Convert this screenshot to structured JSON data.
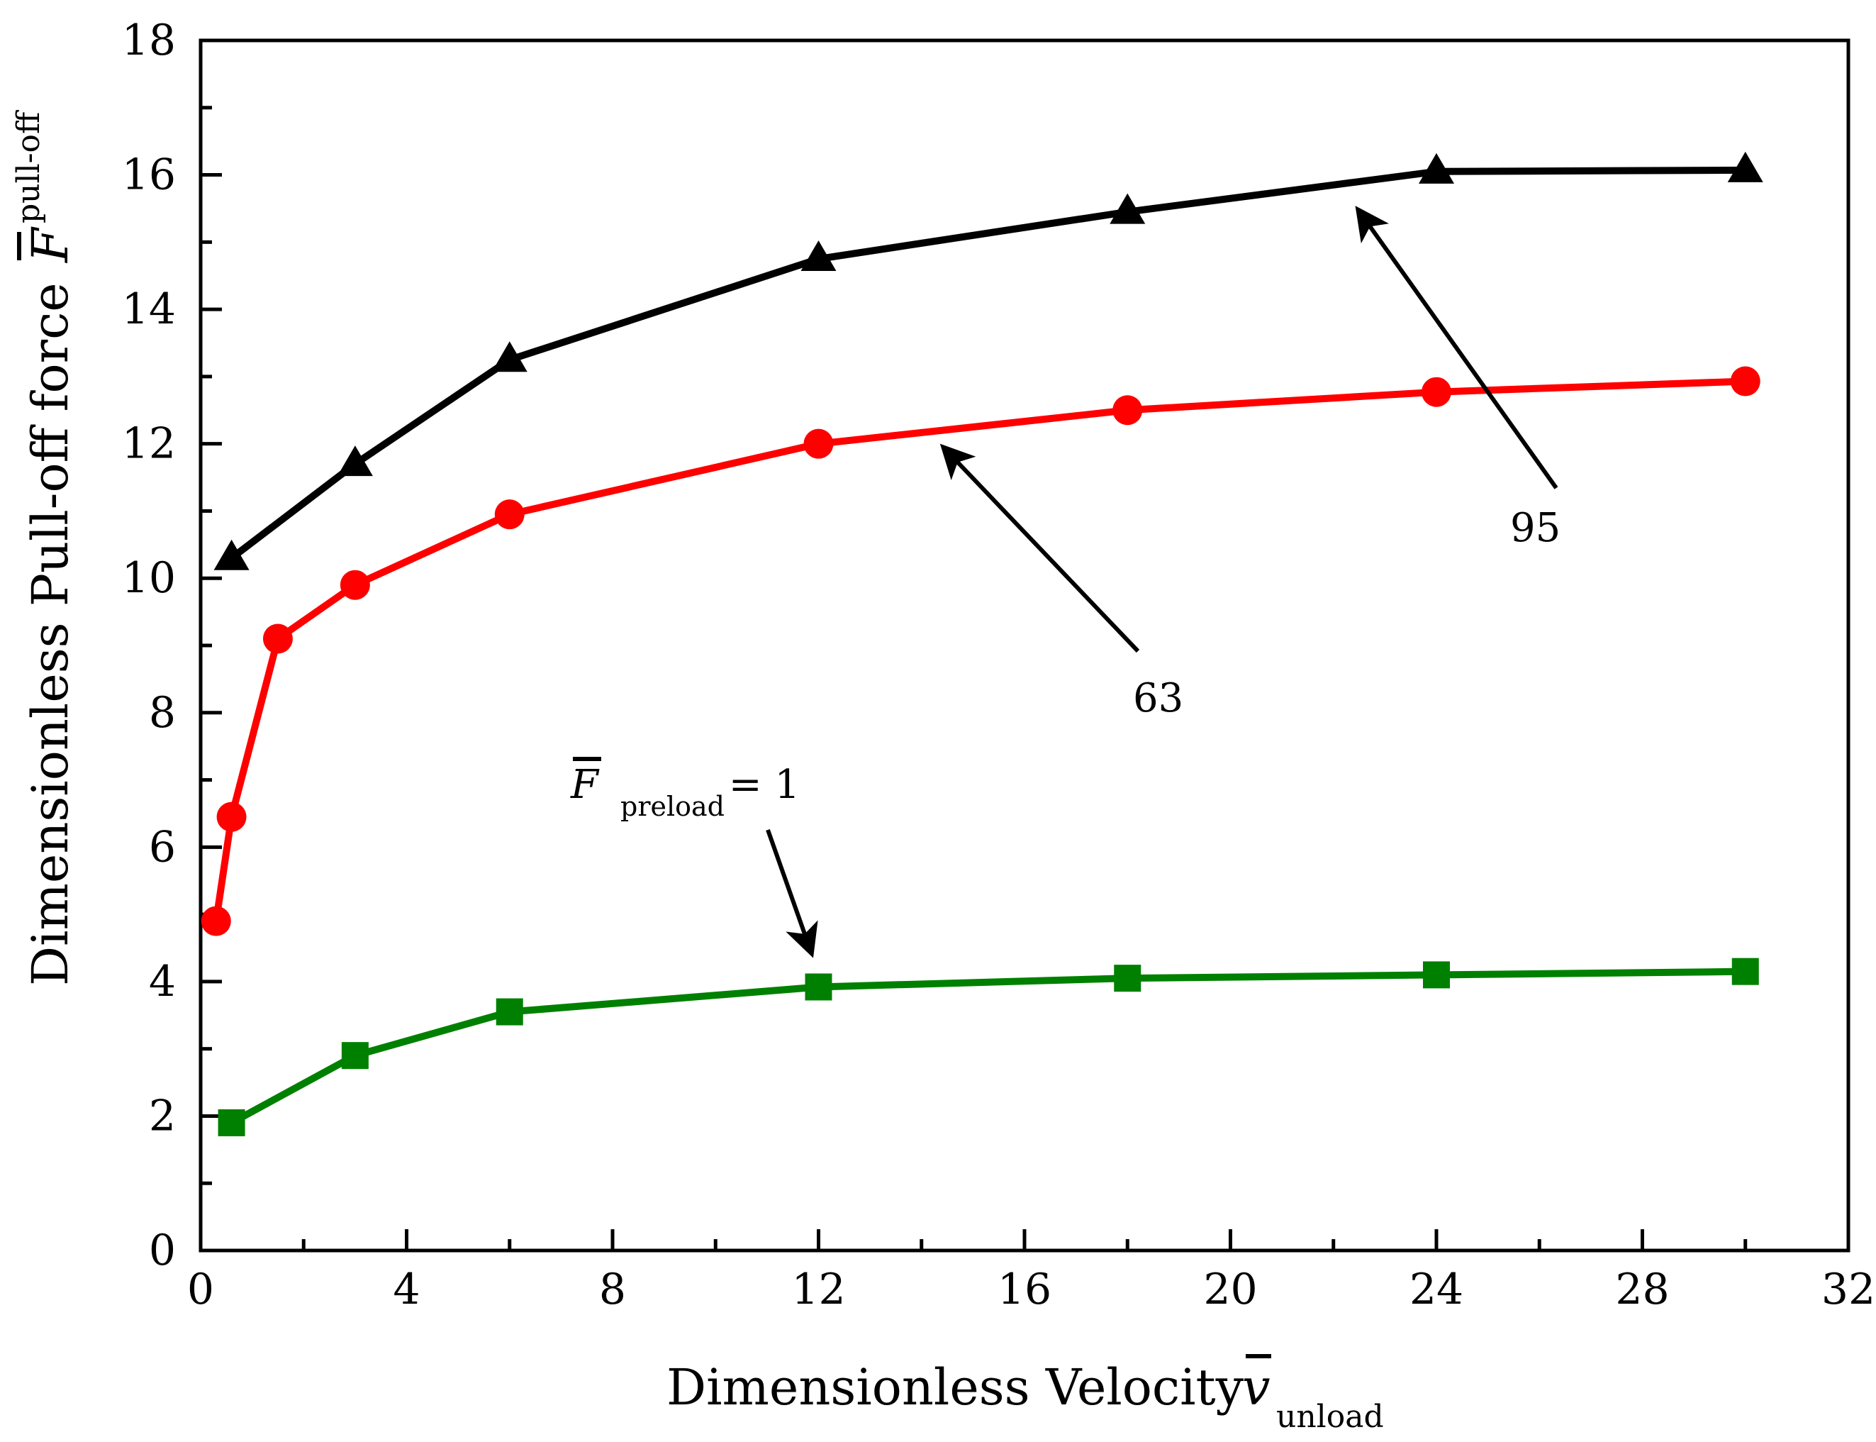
{
  "chart_data": {
    "type": "line",
    "xlabel": "Dimensionless Velocity",
    "xlabel_symbol": "v",
    "xlabel_subscript": "unload",
    "ylabel": "Dimensionless Pull-off force",
    "ylabel_symbol": "F",
    "ylabel_subscript": "pull-off",
    "xlim": [
      0,
      32
    ],
    "ylim": [
      0,
      18
    ],
    "xticks": [
      "0",
      "4",
      "8",
      "12",
      "16",
      "20",
      "24",
      "28",
      "32"
    ],
    "yticks": [
      "0",
      "2",
      "4",
      "6",
      "8",
      "10",
      "12",
      "14",
      "16",
      "18"
    ],
    "xtick_values": [
      0,
      4,
      8,
      12,
      16,
      20,
      24,
      28,
      32
    ],
    "ytick_values": [
      0,
      2,
      4,
      6,
      8,
      10,
      12,
      14,
      16,
      18
    ],
    "series": [
      {
        "name": "95",
        "color": "#000000",
        "marker": "triangle",
        "x": [
          0.6,
          3,
          6,
          12,
          18,
          24,
          30
        ],
        "y": [
          10.3,
          11.7,
          13.25,
          14.75,
          15.45,
          16.05,
          16.07
        ]
      },
      {
        "name": "63",
        "color": "#ff0000",
        "marker": "circle",
        "x": [
          0.3,
          0.6,
          1.5,
          3,
          6,
          12,
          18,
          24,
          30
        ],
        "y": [
          4.9,
          6.45,
          9.1,
          9.9,
          10.95,
          12.0,
          12.5,
          12.77,
          12.93
        ]
      },
      {
        "name": "1",
        "color": "#008000",
        "marker": "square",
        "x": [
          0.6,
          3,
          6,
          12,
          18,
          24,
          30
        ],
        "y": [
          1.9,
          2.9,
          3.55,
          3.92,
          4.05,
          4.1,
          4.15
        ]
      }
    ],
    "annotations": [
      {
        "text": "95",
        "points_to": {
          "x": 22.5,
          "y": 15.65
        }
      },
      {
        "text": "63",
        "points_to": {
          "x": 14.4,
          "y": 11.85
        }
      },
      {
        "symbol": "F",
        "subscript": "preload",
        "suffix": " = 1",
        "points_to": {
          "x": 12.0,
          "y": 4.4
        }
      }
    ]
  }
}
